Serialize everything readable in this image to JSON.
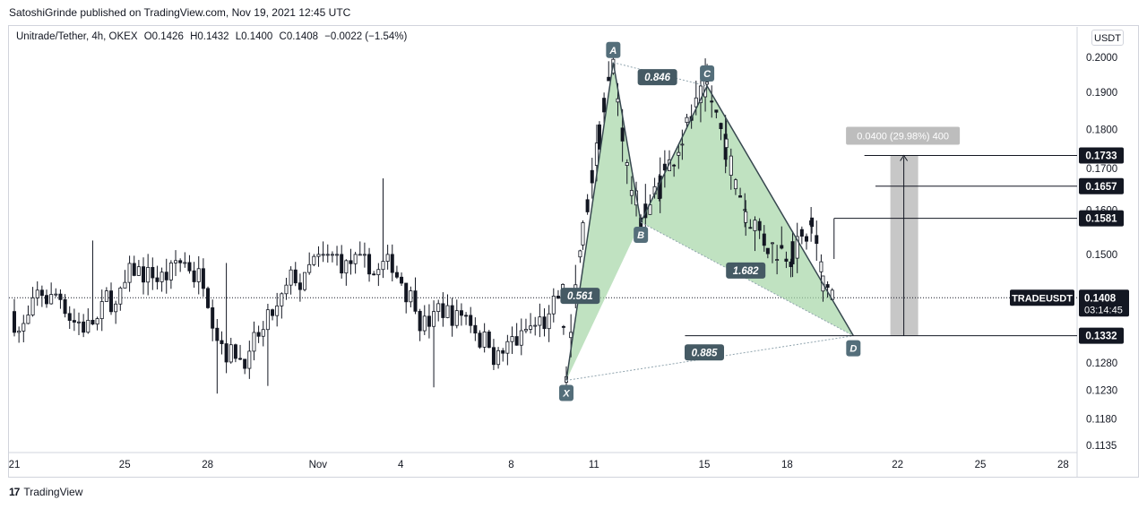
{
  "header": {
    "publisher_line": "SatoshiGrinde published on TradingView.com, Nov 19, 2021 12:45 UTC"
  },
  "legend": {
    "symbol": "Unitrade/Tether, 4h, OKEX",
    "open": "O0.1426",
    "high": "H0.1432",
    "low": "L0.1400",
    "close": "C0.1408",
    "change": "−0.0022 (−1.54%)"
  },
  "currency_button": "USDT",
  "footer": {
    "logo_text": "TradingView",
    "logo_mark": "17"
  },
  "colors": {
    "up": "#26a69a",
    "down": "#131722",
    "harmonic_fill": "#a5d6a7",
    "harmonic_stroke": "#37474f",
    "point_label_bg": "#546e7a",
    "ratio_label_bg": "#455a64",
    "range_fill": "#bdbdbd",
    "price_tag_bg": "#131722"
  },
  "chart_data": {
    "type": "candlestick",
    "symbol": "Unitrade/Tether",
    "timeframe": "4h",
    "exchange": "OKEX",
    "y_axis": {
      "ticks": [
        "0.2000",
        "0.1900",
        "0.1800",
        "0.1700",
        "0.1600",
        "0.1500",
        "0.1280",
        "0.1230",
        "0.1180",
        "0.1135"
      ],
      "scale": "log"
    },
    "x_axis": {
      "ticks": [
        {
          "label": "21",
          "day": 21
        },
        {
          "label": "25",
          "day": 25
        },
        {
          "label": "28",
          "day": 28
        },
        {
          "label": "Nov",
          "day": 32
        },
        {
          "label": "4",
          "day": 35
        },
        {
          "label": "8",
          "day": 39
        },
        {
          "label": "11",
          "day": 42
        },
        {
          "label": "15",
          "day": 46
        },
        {
          "label": "18",
          "day": 49
        },
        {
          "label": "22",
          "day": 53
        },
        {
          "label": "25",
          "day": 56
        },
        {
          "label": "28",
          "day": 59
        }
      ]
    },
    "current_price": {
      "label": "TRADEUSDT",
      "value": "0.1408",
      "countdown": "03:14:45",
      "price": 0.1408
    },
    "price_levels": [
      {
        "value": "0.1733",
        "price": 0.1733,
        "from_day": 51.8
      },
      {
        "value": "0.1657",
        "price": 0.1657,
        "from_day": 52.2
      },
      {
        "value": "0.1581",
        "price": 0.1581,
        "from_day": 50.7
      },
      {
        "value": "0.1332",
        "price": 0.1332,
        "from_day": 45.3
      }
    ],
    "harmonic_pattern": {
      "points": [
        {
          "label": "X",
          "day": 41.0,
          "price": 0.1248
        },
        {
          "label": "A",
          "day": 42.7,
          "price": 0.1985
        },
        {
          "label": "B",
          "day": 43.7,
          "price": 0.1572
        },
        {
          "label": "C",
          "day": 46.1,
          "price": 0.1918
        },
        {
          "label": "D",
          "day": 51.4,
          "price": 0.1332
        }
      ],
      "ratios": [
        {
          "value": "0.846",
          "day": 44.3,
          "price": 0.1943
        },
        {
          "value": "0.561",
          "day": 41.5,
          "price": 0.1412
        },
        {
          "value": "1.682",
          "day": 47.5,
          "price": 0.1465
        },
        {
          "value": "0.885",
          "day": 46.0,
          "price": 0.13
        }
      ]
    },
    "measure": {
      "label": "0.0400 (29.98%) 400",
      "from_price": 0.1332,
      "to_price": 0.1733,
      "from_day": 53.0,
      "to_day": 53.2
    },
    "candles_summary": {
      "pre_pattern_range": [
        0.118,
        0.182
      ],
      "pattern_low": 0.1248,
      "pattern_high": 0.1985,
      "last_close": 0.1408
    }
  }
}
